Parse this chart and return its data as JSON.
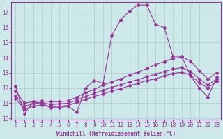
{
  "background_color": "#cce8e8",
  "grid_color": "#aacccc",
  "line_color": "#993399",
  "xlabel": "Windchill (Refroidissement éolien,°C)",
  "xlim": [
    -0.5,
    23.5
  ],
  "ylim": [
    9.9,
    17.7
  ],
  "yticks": [
    10,
    11,
    12,
    13,
    14,
    15,
    16,
    17
  ],
  "xticks": [
    0,
    1,
    2,
    3,
    4,
    5,
    6,
    7,
    8,
    9,
    10,
    11,
    12,
    13,
    14,
    15,
    16,
    17,
    18,
    19,
    20,
    21,
    22,
    23
  ],
  "series": [
    {
      "x": [
        0,
        1,
        2,
        3,
        4,
        5,
        6,
        7,
        8,
        9,
        10,
        11,
        12,
        13,
        14,
        15,
        16,
        17,
        18,
        19,
        20,
        21,
        22,
        23
      ],
      "y": [
        12.1,
        10.3,
        11.1,
        11.0,
        10.7,
        10.7,
        10.8,
        10.4,
        12.0,
        12.5,
        12.3,
        15.5,
        16.5,
        17.1,
        17.5,
        17.5,
        16.2,
        16.0,
        14.1,
        14.1,
        12.8,
        12.0,
        11.4,
        12.7
      ]
    },
    {
      "x": [
        0,
        1,
        2,
        3,
        4,
        5,
        6,
        7,
        8,
        9,
        10,
        11,
        12,
        13,
        14,
        15,
        16,
        17,
        18,
        19,
        20,
        21,
        22,
        23
      ],
      "y": [
        11.8,
        11.0,
        11.1,
        11.15,
        11.1,
        11.1,
        11.15,
        11.4,
        11.7,
        11.9,
        12.2,
        12.4,
        12.6,
        12.85,
        13.05,
        13.3,
        13.55,
        13.75,
        13.95,
        14.05,
        13.8,
        13.15,
        12.6,
        13.0
      ]
    },
    {
      "x": [
        0,
        1,
        2,
        3,
        4,
        5,
        6,
        7,
        8,
        9,
        10,
        11,
        12,
        13,
        14,
        15,
        16,
        17,
        18,
        19,
        20,
        21,
        22,
        23
      ],
      "y": [
        11.5,
        10.8,
        10.95,
        11.05,
        10.9,
        10.95,
        11.0,
        11.2,
        11.45,
        11.65,
        11.85,
        12.05,
        12.2,
        12.4,
        12.55,
        12.75,
        12.9,
        13.1,
        13.25,
        13.35,
        13.1,
        12.6,
        12.2,
        12.6
      ]
    },
    {
      "x": [
        0,
        1,
        2,
        3,
        4,
        5,
        6,
        7,
        8,
        9,
        10,
        11,
        12,
        13,
        14,
        15,
        16,
        17,
        18,
        19,
        20,
        21,
        22,
        23
      ],
      "y": [
        11.3,
        10.6,
        10.8,
        10.9,
        10.75,
        10.8,
        10.85,
        11.05,
        11.25,
        11.45,
        11.6,
        11.8,
        11.95,
        12.15,
        12.3,
        12.5,
        12.6,
        12.8,
        12.95,
        13.05,
        12.85,
        12.35,
        12.0,
        12.45
      ]
    }
  ]
}
